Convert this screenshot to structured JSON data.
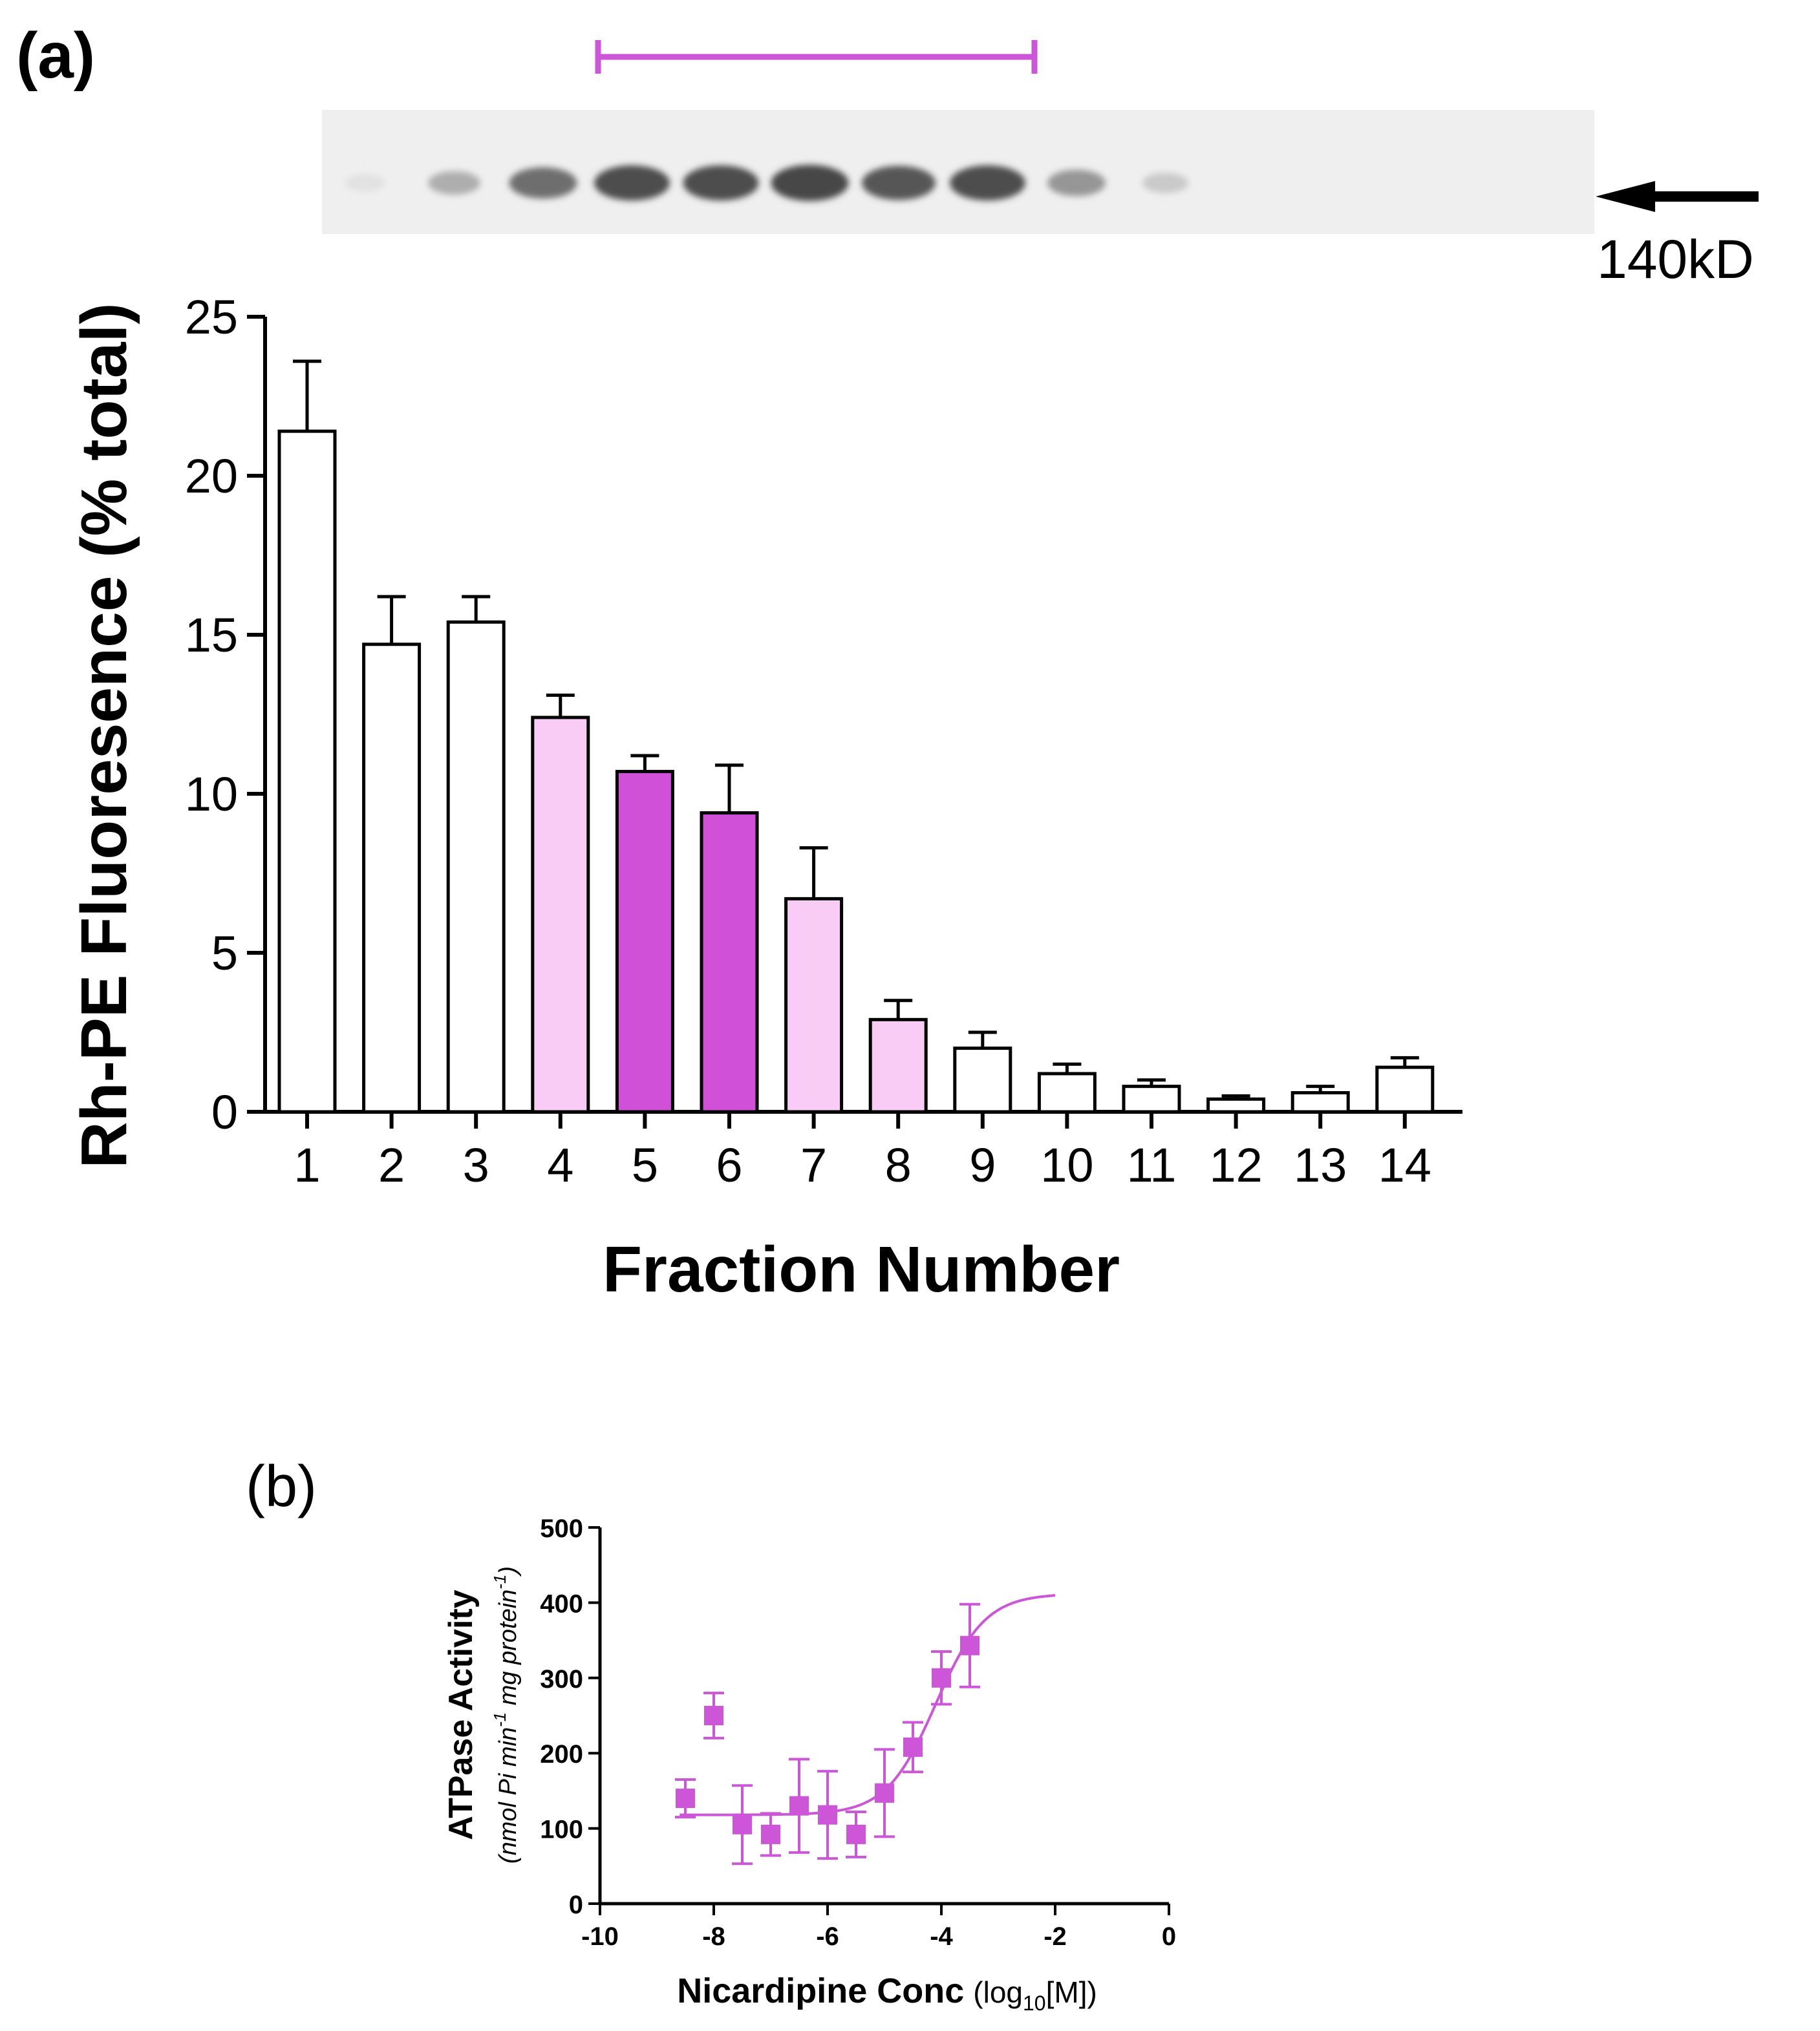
{
  "panel_a": {
    "label": "(a)",
    "blot": {
      "marker_label": "140kD",
      "band_intensities": [
        0.03,
        0.35,
        0.75,
        0.95,
        0.95,
        1.0,
        0.9,
        0.95,
        0.5,
        0.18,
        0.0,
        0.0,
        0.0,
        0.0
      ]
    },
    "accent_color": "#cc55d8",
    "light_color": "#f8ccf4",
    "dark_color": "#d050d8"
  },
  "panel_b": {
    "label": "(b)"
  },
  "chart_data": [
    {
      "type": "bar",
      "title": "",
      "xlabel": "Fraction Number",
      "ylabel": "Rh-PE Fluoresence (% total)",
      "categories": [
        "1",
        "2",
        "3",
        "4",
        "5",
        "6",
        "7",
        "8",
        "9",
        "10",
        "11",
        "12",
        "13",
        "14"
      ],
      "values": [
        21.4,
        14.7,
        15.4,
        12.4,
        10.7,
        9.4,
        6.7,
        2.9,
        2.0,
        1.2,
        0.8,
        0.4,
        0.6,
        1.4
      ],
      "errors": [
        2.2,
        1.5,
        0.8,
        0.7,
        0.5,
        1.5,
        1.6,
        0.6,
        0.5,
        0.3,
        0.2,
        0.1,
        0.2,
        0.3
      ],
      "fills": [
        "white",
        "white",
        "white",
        "light",
        "dark",
        "dark",
        "light",
        "light",
        "white",
        "white",
        "white",
        "white",
        "white",
        "white"
      ],
      "ylim": [
        0,
        25
      ],
      "yticks": [
        "0",
        "5",
        "10",
        "15",
        "20",
        "25"
      ]
    },
    {
      "type": "scatter",
      "title": "",
      "xlabel_main": "Nicardipine Conc",
      "xlabel_unit_pre": "(log",
      "xlabel_unit_sub": "10",
      "xlabel_unit_post": "[M])",
      "ylabel_main": "ATPase Activity",
      "ylabel_unit_pre": "(nmol Pi min",
      "ylabel_unit_sup1": "-1",
      "ylabel_unit_mid": " mg protein",
      "ylabel_unit_sup2": "-1",
      "ylabel_unit_post": ")",
      "x": [
        -8.5,
        -8.0,
        -7.5,
        -7.0,
        -6.5,
        -6.0,
        -5.5,
        -5.0,
        -4.5,
        -4.0,
        -3.5
      ],
      "y": [
        140,
        250,
        105,
        92,
        130,
        118,
        92,
        147,
        208,
        300,
        343
      ],
      "err": [
        25,
        30,
        52,
        28,
        62,
        58,
        30,
        58,
        33,
        35,
        55
      ],
      "fit": {
        "bottom": 118,
        "top": 412,
        "logEC50": -4.1,
        "hill": 1.0,
        "x_start": -8.6,
        "x_end": -2.0
      },
      "xlim": [
        -10,
        0
      ],
      "ylim": [
        0,
        500
      ],
      "xticks": [
        "-10",
        "-8",
        "-6",
        "-4",
        "-2",
        "0"
      ],
      "yticks": [
        "0",
        "100",
        "200",
        "300",
        "400",
        "500"
      ],
      "color": "#cc55d8"
    }
  ]
}
